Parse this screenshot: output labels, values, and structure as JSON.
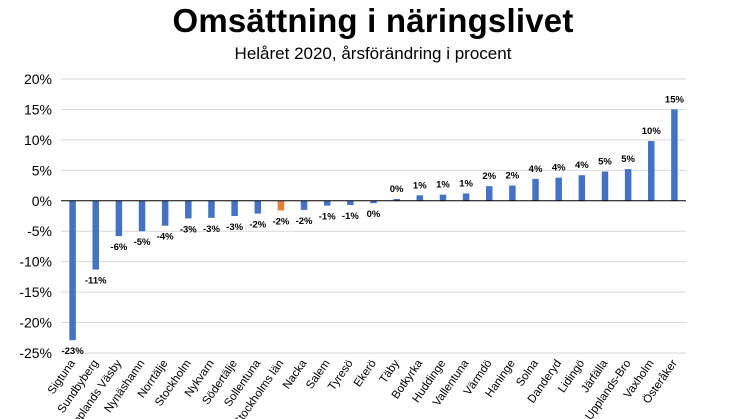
{
  "chart_data": {
    "type": "bar",
    "title": "Omsättning i näringslivet",
    "subtitle": "Helåret 2020, årsförändring i procent",
    "xlabel": "",
    "ylabel": "",
    "ylim": [
      -25,
      20
    ],
    "yticks": [
      20,
      15,
      10,
      5,
      0,
      -5,
      -10,
      -15,
      -20,
      -25
    ],
    "ytick_labels": [
      "20%",
      "15%",
      "10%",
      "5%",
      "0%",
      "-5%",
      "-10%",
      "-15%",
      "-20%",
      "-25%"
    ],
    "grid": true,
    "colors": {
      "default": "#4472C4",
      "highlight": "#ED7D31"
    },
    "highlight_category": "Stockholms län",
    "categories": [
      "Sigtuna",
      "Sundbyberg",
      "Upplands Väsby",
      "Nynäshamn",
      "Norrtälje",
      "Stockholm",
      "Nykvarn",
      "Södertälje",
      "Sollentuna",
      "Stockholms län",
      "Nacka",
      "Salem",
      "Tyresö",
      "Ekerö",
      "Täby",
      "Botkyrka",
      "Huddinge",
      "Vallentuna",
      "Värmdö",
      "Haninge",
      "Solna",
      "Danderyd",
      "Lidingö",
      "Järfälla",
      "Upplands-Bro",
      "Vaxholm",
      "Österåker"
    ],
    "values": [
      -22.9,
      -11.3,
      -5.8,
      -5.0,
      -4.1,
      -2.9,
      -2.8,
      -2.5,
      -2.1,
      -1.6,
      -1.5,
      -0.8,
      -0.7,
      -0.4,
      0.3,
      0.9,
      1.0,
      1.2,
      2.4,
      2.5,
      3.6,
      3.8,
      4.2,
      4.8,
      5.2,
      9.8,
      15.0
    ],
    "data_labels": [
      "-23%",
      "-11%",
      "-6%",
      "-5%",
      "-4%",
      "-3%",
      "-3%",
      "-3%",
      "-2%",
      "-2%",
      "-2%",
      "-1%",
      "-1%",
      "0%",
      "0%",
      "1%",
      "1%",
      "1%",
      "2%",
      "2%",
      "4%",
      "4%",
      "4%",
      "5%",
      "5%",
      "10%",
      "15%"
    ]
  }
}
